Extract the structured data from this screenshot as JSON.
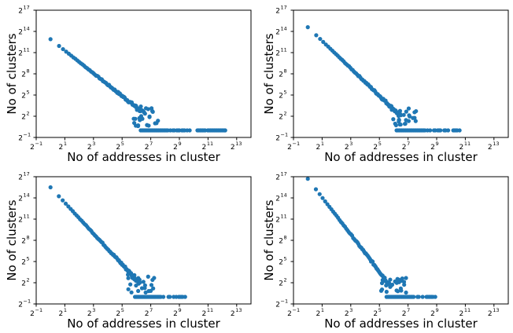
{
  "chart_data": [
    {
      "type": "scatter",
      "xlabel": "No of addresses in cluster",
      "ylabel": "No of clusters",
      "xscale": "log2",
      "yscale": "log2",
      "xlim_log2": [
        -1,
        14
      ],
      "ylim_log2": [
        -1,
        17
      ],
      "xticks": [
        {
          "base": "2",
          "exp": "−1"
        },
        {
          "base": "2",
          "exp": "1"
        },
        {
          "base": "2",
          "exp": "3"
        },
        {
          "base": "2",
          "exp": "5"
        },
        {
          "base": "2",
          "exp": "7"
        },
        {
          "base": "2",
          "exp": "9"
        },
        {
          "base": "2",
          "exp": "11"
        },
        {
          "base": "2",
          "exp": "13"
        }
      ],
      "yticks": [
        {
          "base": "2",
          "exp": "−1"
        },
        {
          "base": "2",
          "exp": "2"
        },
        {
          "base": "2",
          "exp": "5"
        },
        {
          "base": "2",
          "exp": "8"
        },
        {
          "base": "2",
          "exp": "11"
        },
        {
          "base": "2",
          "exp": "14"
        },
        {
          "base": "2",
          "exp": "17"
        }
      ],
      "color": "#1f77b4",
      "trend": {
        "start_log2": [
          0,
          12.9
        ],
        "knee_log2": [
          6.6,
          2.3
        ],
        "tail_end_log2": 12.2,
        "tail_y_log2": 0,
        "points": 80
      }
    },
    {
      "type": "scatter",
      "xlabel": "No of addresses in cluster",
      "ylabel": "No of clusters",
      "xscale": "log2",
      "yscale": "log2",
      "xlim_log2": [
        -1,
        14
      ],
      "ylim_log2": [
        -1,
        17
      ],
      "xticks": [
        {
          "base": "2",
          "exp": "−1"
        },
        {
          "base": "2",
          "exp": "1"
        },
        {
          "base": "2",
          "exp": "3"
        },
        {
          "base": "2",
          "exp": "5"
        },
        {
          "base": "2",
          "exp": "7"
        },
        {
          "base": "2",
          "exp": "9"
        },
        {
          "base": "2",
          "exp": "11"
        },
        {
          "base": "2",
          "exp": "13"
        }
      ],
      "yticks": [
        {
          "base": "2",
          "exp": "−1"
        },
        {
          "base": "2",
          "exp": "2"
        },
        {
          "base": "2",
          "exp": "5"
        },
        {
          "base": "2",
          "exp": "8"
        },
        {
          "base": "2",
          "exp": "11"
        },
        {
          "base": "2",
          "exp": "14"
        },
        {
          "base": "2",
          "exp": "17"
        }
      ],
      "color": "#1f77b4",
      "trend": {
        "start_log2": [
          0,
          14.6
        ],
        "knee_log2": [
          6.5,
          2.0
        ],
        "tail_end_log2": 10.6,
        "tail_y_log2": 0,
        "points": 80
      }
    },
    {
      "type": "scatter",
      "xlabel": "No of addresses in cluster",
      "ylabel": "No of clusters",
      "xscale": "log2",
      "yscale": "log2",
      "xlim_log2": [
        -1,
        14
      ],
      "ylim_log2": [
        -1,
        17
      ],
      "xticks": [
        {
          "base": "2",
          "exp": "−1"
        },
        {
          "base": "2",
          "exp": "1"
        },
        {
          "base": "2",
          "exp": "3"
        },
        {
          "base": "2",
          "exp": "5"
        },
        {
          "base": "2",
          "exp": "7"
        },
        {
          "base": "2",
          "exp": "9"
        },
        {
          "base": "2",
          "exp": "11"
        },
        {
          "base": "2",
          "exp": "13"
        }
      ],
      "yticks": [
        {
          "base": "2",
          "exp": "−1"
        },
        {
          "base": "2",
          "exp": "2"
        },
        {
          "base": "2",
          "exp": "5"
        },
        {
          "base": "2",
          "exp": "8"
        },
        {
          "base": "2",
          "exp": "11"
        },
        {
          "base": "2",
          "exp": "14"
        },
        {
          "base": "2",
          "exp": "17"
        }
      ],
      "color": "#1f77b4",
      "trend": {
        "start_log2": [
          0,
          15.5
        ],
        "knee_log2": [
          6.2,
          2.0
        ],
        "tail_end_log2": 9.4,
        "tail_y_log2": 0,
        "points": 75
      }
    },
    {
      "type": "scatter",
      "xlabel": "No of addresses in cluster",
      "ylabel": "No of clusters",
      "xscale": "log2",
      "yscale": "log2",
      "xlim_log2": [
        -1,
        14
      ],
      "ylim_log2": [
        -1,
        17
      ],
      "xticks": [
        {
          "base": "2",
          "exp": "−1"
        },
        {
          "base": "2",
          "exp": "1"
        },
        {
          "base": "2",
          "exp": "3"
        },
        {
          "base": "2",
          "exp": "5"
        },
        {
          "base": "2",
          "exp": "7"
        },
        {
          "base": "2",
          "exp": "9"
        },
        {
          "base": "2",
          "exp": "11"
        },
        {
          "base": "2",
          "exp": "13"
        }
      ],
      "yticks": [
        {
          "base": "2",
          "exp": "−1"
        },
        {
          "base": "2",
          "exp": "2"
        },
        {
          "base": "2",
          "exp": "5"
        },
        {
          "base": "2",
          "exp": "8"
        },
        {
          "base": "2",
          "exp": "11"
        },
        {
          "base": "2",
          "exp": "14"
        },
        {
          "base": "2",
          "exp": "17"
        }
      ],
      "color": "#1f77b4",
      "trend": {
        "start_log2": [
          0,
          16.7
        ],
        "knee_log2": [
          5.8,
          1.5
        ],
        "tail_end_log2": 8.9,
        "tail_y_log2": 0,
        "points": 70
      }
    }
  ]
}
